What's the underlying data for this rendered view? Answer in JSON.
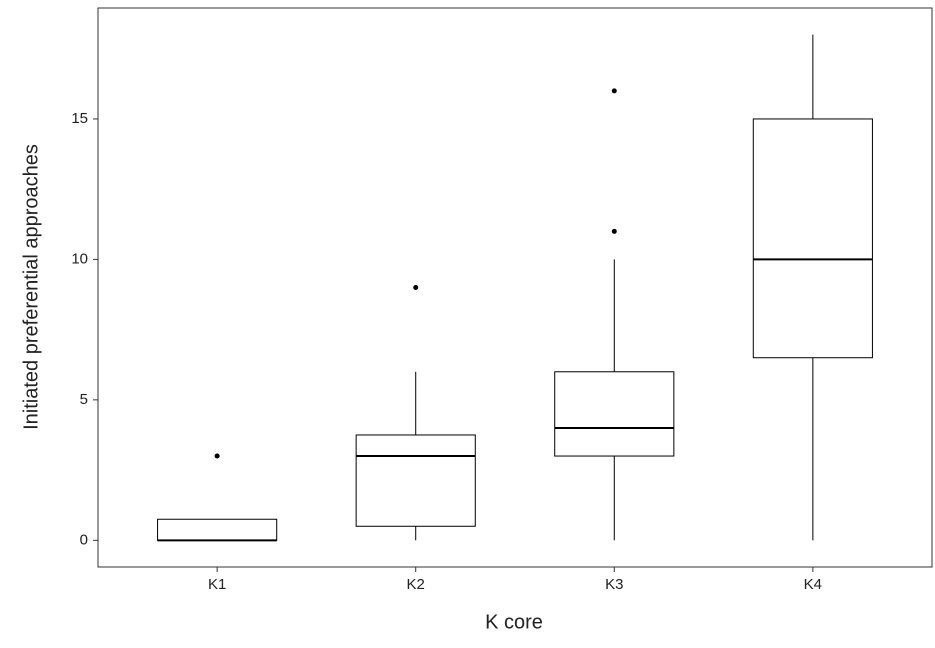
{
  "chart_data": {
    "type": "box",
    "x_label": "K core",
    "y_label": "Initiated preferential approaches",
    "categories": [
      "K1",
      "K2",
      "K3",
      "K4"
    ],
    "boxes": [
      {
        "whislo": 0,
        "q1": 0,
        "med": 0,
        "q3": 0.75,
        "whishi": 0.75,
        "outliers": [
          3
        ]
      },
      {
        "whislo": 0,
        "q1": 0.5,
        "med": 3,
        "q3": 3.75,
        "whishi": 6,
        "outliers": [
          9
        ]
      },
      {
        "whislo": 0,
        "q1": 3,
        "med": 4,
        "q3": 6,
        "whishi": 10,
        "outliers": [
          11,
          16
        ]
      },
      {
        "whislo": 0,
        "q1": 6.5,
        "med": 10,
        "q3": 15,
        "whishi": 18,
        "outliers": []
      }
    ],
    "color": "#000000",
    "fill": "#ffffff",
    "ylim": [
      -0.95,
      18.95
    ],
    "yticks": [
      0,
      5,
      10,
      15
    ],
    "grid": false
  }
}
